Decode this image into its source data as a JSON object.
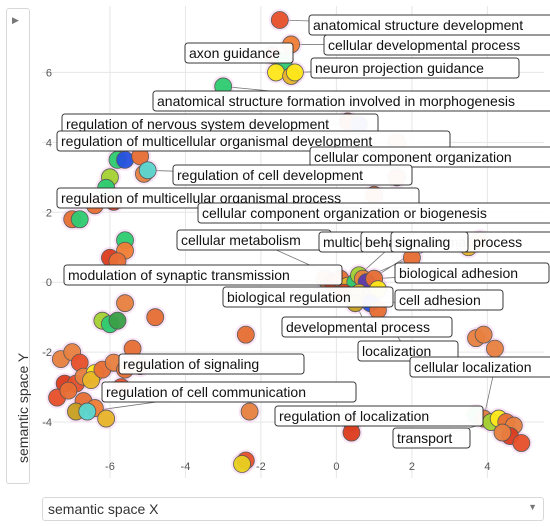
{
  "chart_data": {
    "type": "scatter",
    "xlabel": "semantic space X",
    "ylabel": "semantic space Y",
    "xlim": [
      -7.8,
      5.5
    ],
    "ylim": [
      -5.6,
      7.9
    ],
    "x_ticks": [
      -6,
      -4,
      -2,
      0,
      2,
      4
    ],
    "y_ticks": [
      -4,
      -2,
      0,
      2,
      4,
      6
    ],
    "grid": true,
    "points": [
      {
        "x": -1.5,
        "y": 7.5,
        "color": "#e8502a"
      },
      {
        "x": -1.2,
        "y": 6.8,
        "color": "#f07e34"
      },
      {
        "x": -1.7,
        "y": 6.5,
        "color": "#dc3c1e"
      },
      {
        "x": -1.4,
        "y": 6.3,
        "color": "#2ecc71"
      },
      {
        "x": -1.6,
        "y": 6.0,
        "color": "#ffe81a"
      },
      {
        "x": -1.2,
        "y": 5.9,
        "color": "#e9b52a"
      },
      {
        "x": -1.1,
        "y": 6.0,
        "color": "#ffe81a"
      },
      {
        "x": -3.0,
        "y": 5.6,
        "color": "#2ecc71"
      },
      {
        "x": 0.3,
        "y": 4.6,
        "color": "#dc3c1e"
      },
      {
        "x": 0.6,
        "y": 4.5,
        "color": "#2651e0"
      },
      {
        "x": 1.6,
        "y": 4.0,
        "color": "#f07e34"
      },
      {
        "x": 1.6,
        "y": 3.0,
        "color": "#e8502a"
      },
      {
        "x": 1.0,
        "y": 2.5,
        "color": "#e86e34"
      },
      {
        "x": -5.8,
        "y": 3.5,
        "color": "#2ecc71"
      },
      {
        "x": -5.6,
        "y": 3.5,
        "color": "#2651e0"
      },
      {
        "x": -5.2,
        "y": 3.6,
        "color": "#e86e34"
      },
      {
        "x": -6.0,
        "y": 3.0,
        "color": "#a4d233"
      },
      {
        "x": -5.1,
        "y": 3.1,
        "color": "#e88040"
      },
      {
        "x": -5.0,
        "y": 3.2,
        "color": "#5ad7d0"
      },
      {
        "x": -6.1,
        "y": 2.7,
        "color": "#2ecc71"
      },
      {
        "x": -5.9,
        "y": 2.3,
        "color": "#dc3c1e"
      },
      {
        "x": -6.4,
        "y": 2.2,
        "color": "#e86e34"
      },
      {
        "x": -7.0,
        "y": 1.8,
        "color": "#e86e34"
      },
      {
        "x": -6.8,
        "y": 1.8,
        "color": "#2ecc71"
      },
      {
        "x": -5.6,
        "y": 1.2,
        "color": "#2ecc71"
      },
      {
        "x": -5.6,
        "y": 0.9,
        "color": "#f07e34"
      },
      {
        "x": -6.0,
        "y": 0.7,
        "color": "#dc3c1e"
      },
      {
        "x": -5.8,
        "y": 0.6,
        "color": "#e86e34"
      },
      {
        "x": -5.6,
        "y": -0.6,
        "color": "#e88040"
      },
      {
        "x": -6.2,
        "y": -1.1,
        "color": "#a4d233"
      },
      {
        "x": -6.0,
        "y": -1.2,
        "color": "#2ecc71"
      },
      {
        "x": -5.8,
        "y": -1.1,
        "color": "#3aa047"
      },
      {
        "x": -4.8,
        "y": -1.0,
        "color": "#e86e34"
      },
      {
        "x": -5.4,
        "y": -1.9,
        "color": "#e86e34"
      },
      {
        "x": -7.3,
        "y": -2.2,
        "color": "#e88040"
      },
      {
        "x": -7.0,
        "y": -2.0,
        "color": "#e88040"
      },
      {
        "x": -6.8,
        "y": -2.3,
        "color": "#e8502a"
      },
      {
        "x": -7.2,
        "y": -2.9,
        "color": "#dc3c1e"
      },
      {
        "x": -6.9,
        "y": -2.9,
        "color": "#e8502a"
      },
      {
        "x": -6.7,
        "y": -2.7,
        "color": "#e88040"
      },
      {
        "x": -6.4,
        "y": -2.6,
        "color": "#ffe81a"
      },
      {
        "x": -6.5,
        "y": -2.8,
        "color": "#e9b52a"
      },
      {
        "x": -6.2,
        "y": -2.5,
        "color": "#e86e34"
      },
      {
        "x": -5.9,
        "y": -2.3,
        "color": "#e88040"
      },
      {
        "x": -5.6,
        "y": -2.5,
        "color": "#e86e34"
      },
      {
        "x": -5.2,
        "y": -2.4,
        "color": "#e88040"
      },
      {
        "x": -5.7,
        "y": -3.0,
        "color": "#e8502a"
      },
      {
        "x": -7.4,
        "y": -3.3,
        "color": "#e8502a"
      },
      {
        "x": -7.1,
        "y": -3.1,
        "color": "#e86e34"
      },
      {
        "x": -6.7,
        "y": -3.4,
        "color": "#e86e34"
      },
      {
        "x": -6.4,
        "y": -3.6,
        "color": "#f07e34"
      },
      {
        "x": -6.9,
        "y": -3.7,
        "color": "#c8a020"
      },
      {
        "x": -6.6,
        "y": -3.7,
        "color": "#5ad7d0"
      },
      {
        "x": -6.1,
        "y": -3.9,
        "color": "#e9b52a"
      },
      {
        "x": -2.4,
        "y": -1.5,
        "color": "#e86e34"
      },
      {
        "x": -2.3,
        "y": -3.7,
        "color": "#e88040"
      },
      {
        "x": -2.4,
        "y": -5.1,
        "color": "#e8502a"
      },
      {
        "x": -2.5,
        "y": -5.2,
        "color": "#e9d020"
      },
      {
        "x": 0.4,
        "y": -4.0,
        "color": "#e86e34"
      },
      {
        "x": 0.4,
        "y": -4.3,
        "color": "#dc3c1e"
      },
      {
        "x": -0.3,
        "y": 0.1,
        "color": "#e88040"
      },
      {
        "x": -0.1,
        "y": 0.0,
        "color": "#dc3c1e"
      },
      {
        "x": 0.1,
        "y": 0.1,
        "color": "#e86e34"
      },
      {
        "x": 0.3,
        "y": -0.1,
        "color": "#e9b52a"
      },
      {
        "x": 0.5,
        "y": 0.0,
        "color": "#2ecc71"
      },
      {
        "x": 0.6,
        "y": 0.2,
        "color": "#a4d233"
      },
      {
        "x": 0.7,
        "y": 0.1,
        "color": "#e88040"
      },
      {
        "x": 0.8,
        "y": 0.0,
        "color": "#5a3ab0"
      },
      {
        "x": 1.0,
        "y": 0.1,
        "color": "#e86e34"
      },
      {
        "x": 0.2,
        "y": -0.3,
        "color": "#dc3c1e"
      },
      {
        "x": 0.6,
        "y": -0.3,
        "color": "#e9b52a"
      },
      {
        "x": 0.9,
        "y": -0.4,
        "color": "#e88040"
      },
      {
        "x": 1.1,
        "y": -0.2,
        "color": "#ffe81a"
      },
      {
        "x": 0.5,
        "y": -0.6,
        "color": "#c8a020"
      },
      {
        "x": 0.9,
        "y": -0.6,
        "color": "#2651e0"
      },
      {
        "x": 1.1,
        "y": -0.8,
        "color": "#e86e34"
      },
      {
        "x": 2.0,
        "y": 0.7,
        "color": "#e86e34"
      },
      {
        "x": 3.5,
        "y": 1.0,
        "color": "#e9b52a"
      },
      {
        "x": 3.8,
        "y": 1.2,
        "color": "#e88040"
      },
      {
        "x": 3.7,
        "y": -1.6,
        "color": "#e88040"
      },
      {
        "x": 3.9,
        "y": -1.5,
        "color": "#e88040"
      },
      {
        "x": 4.2,
        "y": -1.9,
        "color": "#e88040"
      },
      {
        "x": 3.7,
        "y": -3.8,
        "color": "#2ecc71"
      },
      {
        "x": 3.9,
        "y": -3.9,
        "color": "#e88040"
      },
      {
        "x": 4.1,
        "y": -4.0,
        "color": "#a4d233"
      },
      {
        "x": 4.3,
        "y": -3.9,
        "color": "#ffe81a"
      },
      {
        "x": 4.5,
        "y": -4.0,
        "color": "#e86e34"
      },
      {
        "x": 4.7,
        "y": -4.1,
        "color": "#e88040"
      },
      {
        "x": 4.6,
        "y": -4.4,
        "color": "#dc3c1e"
      },
      {
        "x": 4.9,
        "y": -4.6,
        "color": "#e8502a"
      },
      {
        "x": 4.4,
        "y": -4.3,
        "color": "#e88040"
      }
    ],
    "annotations": [
      {
        "text": "anatomical structure development",
        "ax": -1.5,
        "ay": 7.5
      },
      {
        "text": "cellular developmental process",
        "ax": -1.2,
        "ay": 6.8
      },
      {
        "text": "axon guidance",
        "ax": -1.4,
        "ay": 6.3
      },
      {
        "text": "neuron projection guidance",
        "ax": -1.1,
        "ay": 6.0
      },
      {
        "text": "anatomical structure formation involved in morphogenesis",
        "ax": -3.0,
        "ay": 5.6
      },
      {
        "text": "regulation of nervous system development",
        "ax": 0.6,
        "ay": 4.5
      },
      {
        "text": "regulation of multicellular organismal development",
        "ax": 0.3,
        "ay": 4.6
      },
      {
        "text": "cellular component organization",
        "ax": 1.6,
        "ay": 4.0
      },
      {
        "text": "regulation of cell development",
        "ax": -5.0,
        "ay": 3.2
      },
      {
        "text": "regulation of multicellular organismal process",
        "ax": -5.9,
        "ay": 2.3
      },
      {
        "text": "cellular component organization or biogenesis",
        "ax": 1.0,
        "ay": 2.5
      },
      {
        "text": "cellular metabolism",
        "ax": 0.1,
        "ay": 0.1
      },
      {
        "text": "multicellular organismal process",
        "ax": 0.5,
        "ay": 0.0
      },
      {
        "text": "behavior",
        "ax": 0.6,
        "ay": 0.2
      },
      {
        "text": "signaling",
        "ax": 0.8,
        "ay": 0.0
      },
      {
        "text": "modulation of synaptic transmission",
        "ax": -0.1,
        "ay": 0.0
      },
      {
        "text": "biological adhesion",
        "ax": 1.0,
        "ay": 0.1
      },
      {
        "text": "biological regulation",
        "ax": 0.3,
        "ay": -0.1
      },
      {
        "text": "cell adhesion",
        "ax": 0.9,
        "ay": -0.6
      },
      {
        "text": "developmental process",
        "ax": 0.5,
        "ay": -0.6
      },
      {
        "text": "localization",
        "ax": 1.1,
        "ay": -0.8
      },
      {
        "text": "cellular localization",
        "ax": 3.9,
        "ay": -3.9
      },
      {
        "text": "regulation of signaling",
        "ax": -6.4,
        "ay": -2.6
      },
      {
        "text": "regulation of cell communication",
        "ax": -6.6,
        "ay": -3.7
      },
      {
        "text": "regulation of localization",
        "ax": 0.4,
        "ay": -4.0
      },
      {
        "text": "transport",
        "ax": 4.1,
        "ay": -4.0
      }
    ]
  },
  "labels": [
    "anatomical structure development",
    "cellular developmental process",
    "axon guidance",
    "neuron projection guidance",
    "anatomical structure formation involved in morphogenesis",
    "regulation of nervous system development",
    "regulation of multicellular organismal development",
    "cellular component organization",
    "regulation of cell development",
    "regulation of multicellular organismal process",
    "cellular component organization or biogenesis",
    "cellular metabolism",
    "multicellular organismal process",
    "behavior",
    "signaling",
    "modulation of synaptic transmission",
    "biological adhesion",
    "biological regulation",
    "cell adhesion",
    "developmental process",
    "localization",
    "cellular localization",
    "regulation of signaling",
    "regulation of cell communication",
    "regulation of localization",
    "transport"
  ],
  "axis_controls": {
    "x_selector_value": "semantic space X",
    "y_selector_value": "semantic space Y",
    "dropdown_arrow": "▼",
    "vertical_arrow": "▶"
  }
}
